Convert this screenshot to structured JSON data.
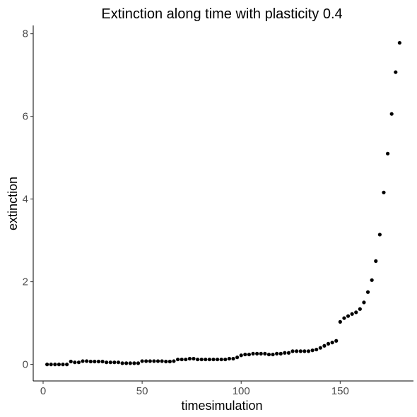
{
  "chart_data": {
    "type": "scatter",
    "title": "Extinction along time with plasticity 0.4",
    "xlabel": "timesimulation",
    "ylabel": "extinction",
    "xlim": [
      -5,
      187
    ],
    "ylim": [
      -0.4,
      8.2
    ],
    "xticks": [
      0,
      50,
      100,
      150
    ],
    "yticks": [
      0,
      2,
      4,
      6,
      8
    ],
    "grid": false,
    "legend": "none",
    "point_color": "#000000",
    "series": [
      {
        "x": [
          2,
          4,
          6,
          8,
          10,
          12,
          14,
          16,
          18,
          20,
          22,
          24,
          26,
          28,
          30,
          32,
          34,
          36,
          38,
          40,
          42,
          44,
          46,
          48,
          50,
          52,
          54,
          56,
          58,
          60,
          62,
          64,
          66,
          68,
          70,
          72,
          74,
          76,
          78,
          80,
          82,
          84,
          86,
          88,
          90,
          92,
          94,
          96,
          98,
          100,
          102,
          104,
          106,
          108,
          110,
          112,
          114,
          116,
          118,
          120,
          122,
          124,
          126,
          128,
          130,
          132,
          134,
          136,
          138,
          140,
          142,
          144,
          146,
          148,
          150,
          152,
          154,
          156,
          158,
          160,
          162,
          164,
          166,
          168,
          170,
          172,
          174,
          176,
          178,
          180
        ],
        "y": [
          0.0,
          0.0,
          0.0,
          0.0,
          0.0,
          0.0,
          0.07,
          0.05,
          0.05,
          0.08,
          0.08,
          0.07,
          0.07,
          0.07,
          0.07,
          0.05,
          0.05,
          0.05,
          0.05,
          0.03,
          0.03,
          0.03,
          0.03,
          0.03,
          0.08,
          0.08,
          0.08,
          0.08,
          0.08,
          0.08,
          0.07,
          0.07,
          0.08,
          0.12,
          0.12,
          0.12,
          0.14,
          0.14,
          0.12,
          0.12,
          0.12,
          0.12,
          0.12,
          0.12,
          0.12,
          0.12,
          0.14,
          0.14,
          0.17,
          0.22,
          0.24,
          0.24,
          0.26,
          0.26,
          0.26,
          0.26,
          0.24,
          0.24,
          0.26,
          0.26,
          0.28,
          0.28,
          0.32,
          0.32,
          0.32,
          0.32,
          0.32,
          0.34,
          0.36,
          0.4,
          0.45,
          0.5,
          0.53,
          0.57,
          1.03,
          1.12,
          1.17,
          1.22,
          1.26,
          1.34,
          1.5,
          1.75,
          2.04,
          2.5,
          3.14,
          4.16,
          5.1,
          6.06,
          7.07,
          7.78
        ]
      }
    ]
  }
}
